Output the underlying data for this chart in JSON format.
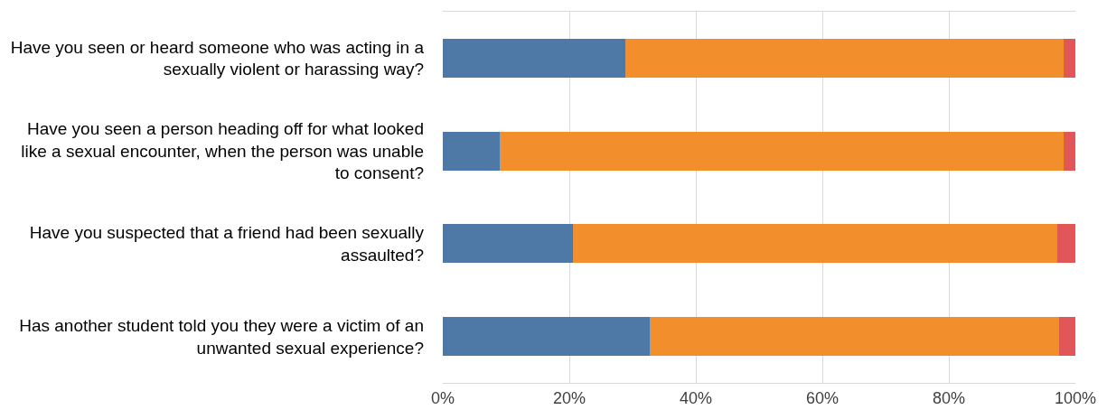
{
  "chart_data": {
    "type": "bar",
    "orientation": "horizontal",
    "stacked": true,
    "categories": [
      "Have you seen or heard someone who was acting in a sexually violent or harassing way?",
      "Have you seen a person heading off for what looked like a sexual encounter, when the person was unable to consent?",
      "Have you suspected that a friend had been sexually assaulted?",
      "Has another student told you they were a victim of an unwanted sexual experience?"
    ],
    "series": [
      {
        "color": "#4e79a7",
        "values": [
          28.8,
          9.0,
          20.5,
          32.7
        ]
      },
      {
        "color": "#f28e2c",
        "values": [
          69.4,
          89.2,
          76.7,
          64.7
        ]
      },
      {
        "color": "#e15759",
        "values": [
          1.8,
          1.8,
          2.8,
          2.6
        ]
      }
    ],
    "xlim": [
      0,
      100
    ],
    "xticks": [
      {
        "value": 0,
        "label": "0%"
      },
      {
        "value": 20,
        "label": "20%"
      },
      {
        "value": 40,
        "label": "40%"
      },
      {
        "value": 60,
        "label": "60%"
      },
      {
        "value": 80,
        "label": "80%"
      },
      {
        "value": 100,
        "label": "100%"
      }
    ],
    "grid": "x"
  }
}
